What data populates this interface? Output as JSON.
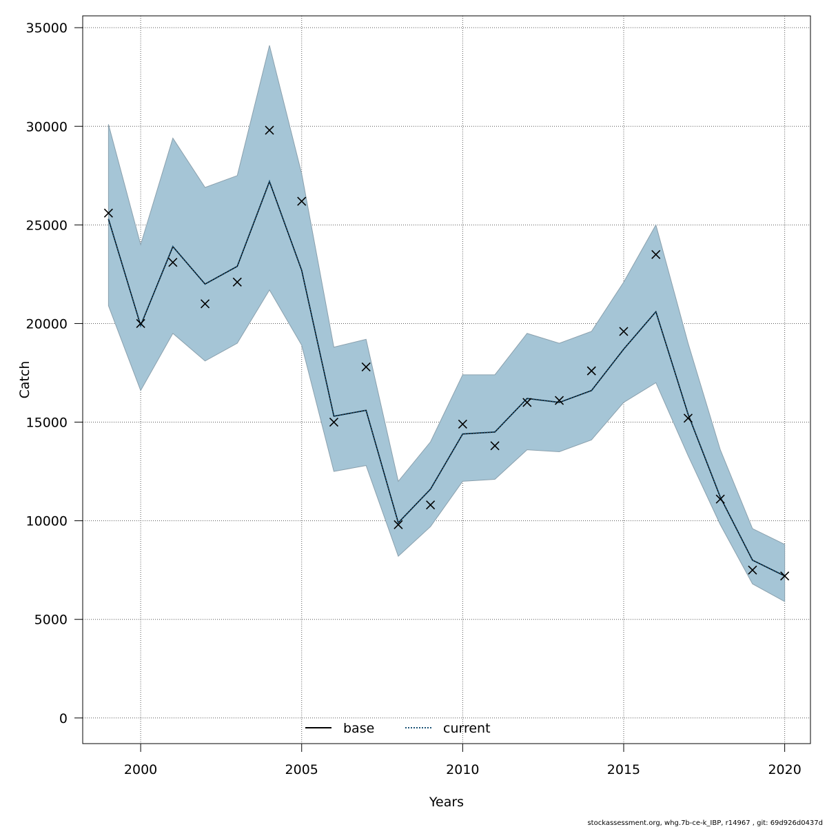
{
  "chart_data": {
    "type": "line",
    "title": "",
    "xlabel": "Years",
    "ylabel": "Catch",
    "xlim": [
      1998.2,
      2020.8
    ],
    "ylim": [
      -1300,
      35600
    ],
    "x_ticks": [
      2000,
      2005,
      2010,
      2015,
      2020
    ],
    "y_ticks": [
      0,
      5000,
      10000,
      15000,
      20000,
      25000,
      30000,
      35000
    ],
    "grid": true,
    "legend_position": "bottom-center",
    "years": [
      1999,
      2000,
      2001,
      2002,
      2003,
      2004,
      2005,
      2006,
      2007,
      2008,
      2009,
      2010,
      2011,
      2012,
      2013,
      2014,
      2015,
      2016,
      2017,
      2018,
      2019,
      2020
    ],
    "series": [
      {
        "name": "base",
        "style": "solid",
        "color": "#000000",
        "values": [
          25300,
          19900,
          23900,
          22000,
          22900,
          27200,
          22700,
          15300,
          15600,
          9900,
          11600,
          14400,
          14500,
          16200,
          16000,
          16600,
          18700,
          20600,
          15400,
          11200,
          8000,
          7200
        ]
      },
      {
        "name": "current",
        "style": "dotted",
        "color": "#1a5276",
        "values": [
          25300,
          19900,
          23900,
          22000,
          22900,
          27200,
          22700,
          15300,
          15600,
          9900,
          11600,
          14400,
          14500,
          16200,
          16000,
          16600,
          18700,
          20600,
          15400,
          11200,
          8000,
          7200
        ]
      }
    ],
    "band": {
      "color": "#a5c5d6",
      "upper": [
        30100,
        24000,
        29400,
        26900,
        27500,
        34100,
        27600,
        18800,
        19200,
        12000,
        14000,
        17400,
        17400,
        19500,
        19000,
        19600,
        22100,
        25000,
        19000,
        13600,
        9600,
        8800
      ],
      "lower": [
        20900,
        16600,
        19500,
        18100,
        19000,
        21700,
        18900,
        12500,
        12800,
        8200,
        9700,
        12000,
        12100,
        13600,
        13500,
        14100,
        16000,
        17000,
        13300,
        9800,
        6800,
        5900
      ]
    },
    "observed": {
      "marker": "x",
      "values": [
        25600,
        20000,
        23100,
        21000,
        22100,
        29800,
        26200,
        15000,
        17800,
        9800,
        10800,
        14900,
        13800,
        16000,
        16100,
        17600,
        19600,
        23500,
        15200,
        11100,
        7500,
        7200
      ]
    }
  },
  "footer": {
    "text": "stockassessment.org, whg.7b-ce-k_IBP, r14967 , git: 69d926d0437d"
  }
}
